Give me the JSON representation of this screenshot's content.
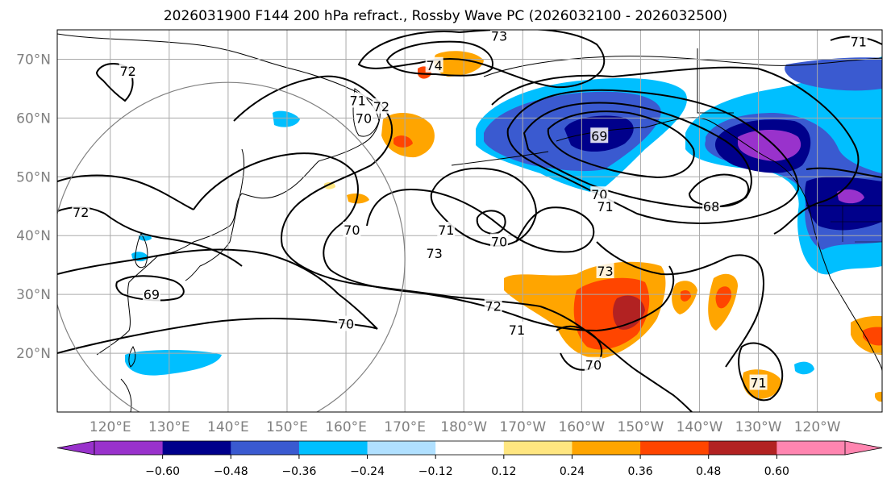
{
  "title": "2026031900 F144 200 hPa refract., Rossby Wave PC (2026032100 - 2026032500)",
  "map": {
    "projection": "PlateCarree",
    "lon_range_east": [
      111,
      251
    ],
    "lat_range": [
      10,
      75
    ],
    "lat_ticks": [
      {
        "value": 20,
        "label": "20°N"
      },
      {
        "value": 30,
        "label": "30°N"
      },
      {
        "value": 40,
        "label": "40°N"
      },
      {
        "value": 50,
        "label": "50°N"
      },
      {
        "value": 60,
        "label": "60°N"
      },
      {
        "value": 70,
        "label": "70°N"
      }
    ],
    "lon_ticks": [
      {
        "value": 120,
        "label": "120°E"
      },
      {
        "value": 130,
        "label": "130°E"
      },
      {
        "value": 140,
        "label": "140°E"
      },
      {
        "value": 150,
        "label": "150°E"
      },
      {
        "value": 160,
        "label": "160°E"
      },
      {
        "value": 170,
        "label": "170°E"
      },
      {
        "value": 180,
        "label": "180°W"
      },
      {
        "value": 190,
        "label": "170°W"
      },
      {
        "value": 200,
        "label": "160°W"
      },
      {
        "value": 210,
        "label": "150°W"
      },
      {
        "value": 220,
        "label": "140°W"
      },
      {
        "value": 230,
        "label": "130°W"
      },
      {
        "value": 240,
        "label": "120°W"
      }
    ],
    "grid": true,
    "circle": {
      "center_lon": 140,
      "center_lat": 36,
      "radius_deg": 30,
      "color": "#808080"
    }
  },
  "colorbar": {
    "orientation": "horizontal",
    "extend": "both",
    "bounds": [
      -0.72,
      -0.6,
      -0.48,
      -0.36,
      -0.24,
      -0.12,
      0.12,
      0.24,
      0.36,
      0.48,
      0.6,
      0.72
    ],
    "colors": [
      "#9932cc",
      "#00008b",
      "#3a5ad0",
      "#00bfff",
      "#b0e0ff",
      "#ffffff",
      "#ffe680",
      "#ffa500",
      "#ff4500",
      "#b22222",
      "#ff85b0"
    ],
    "under_color": "#9932cc",
    "over_color": "#ff85b0",
    "tick_labels": [
      "−0.60",
      "−0.48",
      "−0.36",
      "−0.24",
      "−0.12",
      "0.12",
      "0.24",
      "0.36",
      "0.48",
      "0.60"
    ],
    "tick_values": [
      -0.6,
      -0.48,
      -0.36,
      -0.24,
      -0.12,
      0.12,
      0.24,
      0.36,
      0.48,
      0.6
    ]
  },
  "contour_labels": [
    {
      "text": "72",
      "lon": 123,
      "lat": 68
    },
    {
      "text": "73",
      "lon": 186,
      "lat": 74
    },
    {
      "text": "74",
      "lon": 175,
      "lat": 69
    },
    {
      "text": "71",
      "lon": 162,
      "lat": 63
    },
    {
      "text": "72",
      "lon": 166,
      "lat": 62
    },
    {
      "text": "70",
      "lon": 163,
      "lat": 60
    },
    {
      "text": "70",
      "lon": 161,
      "lat": 41
    },
    {
      "text": "71",
      "lon": 177,
      "lat": 41
    },
    {
      "text": "73",
      "lon": 175,
      "lat": 37
    },
    {
      "text": "70",
      "lon": 186,
      "lat": 39
    },
    {
      "text": "70",
      "lon": 203,
      "lat": 47
    },
    {
      "text": "71",
      "lon": 204,
      "lat": 45
    },
    {
      "text": "73",
      "lon": 204,
      "lat": 34
    },
    {
      "text": "69",
      "lon": 203,
      "lat": 57
    },
    {
      "text": "68",
      "lon": 222,
      "lat": 45
    },
    {
      "text": "69",
      "lon": 127,
      "lat": 30
    },
    {
      "text": "70",
      "lon": 160,
      "lat": 25
    },
    {
      "text": "72",
      "lon": 185,
      "lat": 28
    },
    {
      "text": "71",
      "lon": 189,
      "lat": 24
    },
    {
      "text": "70",
      "lon": 202,
      "lat": 18
    },
    {
      "text": "71",
      "lon": 230,
      "lat": 15
    },
    {
      "text": "72",
      "lon": 115,
      "lat": 44
    },
    {
      "text": "71",
      "lon": 247,
      "lat": 73
    }
  ]
}
